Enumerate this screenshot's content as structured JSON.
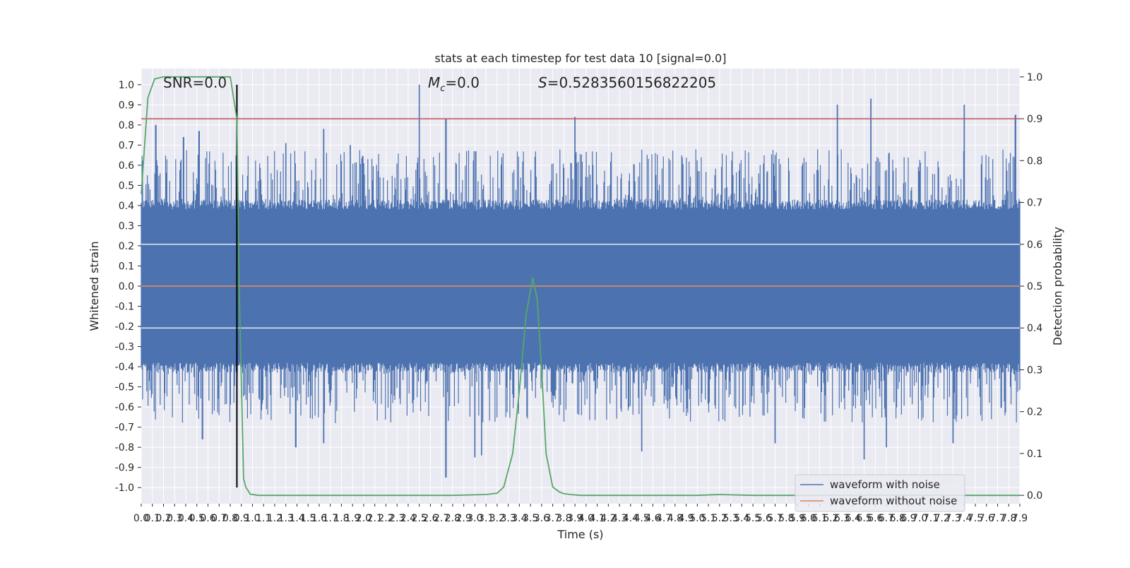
{
  "chart_data": {
    "type": "line",
    "title": "stats at each timestep for test data 10 [signal=0.0]",
    "xlabel": "Time (s)",
    "ylabel": "Whitened strain",
    "y2label": "Detection probability",
    "xlim": [
      0.0,
      7.9
    ],
    "ylim": [
      -1.08,
      1.08
    ],
    "y2lim": [
      -0.02,
      1.02
    ],
    "x_ticks": [
      0.0,
      0.1,
      0.2,
      0.3,
      0.4,
      0.5,
      0.6,
      0.7,
      0.8,
      0.9,
      1.0,
      1.1,
      1.2,
      1.3,
      1.4,
      1.5,
      1.6,
      1.7,
      1.8,
      1.9,
      2.0,
      2.1,
      2.2,
      2.3,
      2.4,
      2.5,
      2.6,
      2.7,
      2.8,
      2.9,
      3.0,
      3.1,
      3.2,
      3.3,
      3.4,
      3.5,
      3.6,
      3.7,
      3.8,
      3.9,
      4.0,
      4.1,
      4.2,
      4.3,
      4.4,
      4.5,
      4.6,
      4.7,
      4.8,
      4.9,
      5.0,
      5.1,
      5.2,
      5.3,
      5.4,
      5.5,
      5.6,
      5.7,
      5.8,
      5.9,
      6.0,
      6.1,
      6.2,
      6.3,
      6.4,
      6.5,
      6.6,
      6.7,
      6.8,
      6.9,
      7.0,
      7.1,
      7.2,
      7.3,
      7.4,
      7.5,
      7.6,
      7.7,
      7.8,
      7.9
    ],
    "y_ticks": [
      -1.0,
      -0.9,
      -0.8,
      -0.7,
      -0.6,
      -0.5,
      -0.4,
      -0.3,
      -0.2,
      -0.1,
      0.0,
      0.1,
      0.2,
      0.3,
      0.4,
      0.5,
      0.6,
      0.7,
      0.8,
      0.9,
      1.0
    ],
    "y2_ticks": [
      0.0,
      0.1,
      0.2,
      0.3,
      0.4,
      0.5,
      0.6,
      0.7,
      0.8,
      0.9,
      1.0
    ],
    "grid": true,
    "legend_position": "lower-right",
    "annotations": {
      "snr": "SNR=0.0",
      "mc_symbol": "M",
      "mc_sub": "c",
      "mc_value": "=0.0",
      "s_symbol": "S",
      "s_value": "=0.5283560156822205"
    },
    "threshold": {
      "y2": 0.9,
      "color": "#c44e52"
    },
    "marker_time": 0.86,
    "noise_envelope": {
      "band": 0.38,
      "max_peaks": [
        {
          "x": 0.13,
          "y": 0.8
        },
        {
          "x": 0.38,
          "y": 0.74
        },
        {
          "x": 0.52,
          "y": 0.77
        },
        {
          "x": 1.3,
          "y": 0.71
        },
        {
          "x": 1.64,
          "y": 0.78
        },
        {
          "x": 1.88,
          "y": 0.7
        },
        {
          "x": 2.5,
          "y": 1.0
        },
        {
          "x": 2.74,
          "y": 0.83
        },
        {
          "x": 3.9,
          "y": 0.84
        },
        {
          "x": 6.26,
          "y": 0.9
        },
        {
          "x": 6.56,
          "y": 0.93
        },
        {
          "x": 7.4,
          "y": 0.9
        },
        {
          "x": 7.86,
          "y": 0.85
        }
      ],
      "min_peaks": [
        {
          "x": 0.55,
          "y": -0.76
        },
        {
          "x": 1.39,
          "y": -0.8
        },
        {
          "x": 1.64,
          "y": -0.78
        },
        {
          "x": 2.74,
          "y": -0.95
        },
        {
          "x": 3.0,
          "y": -0.85
        },
        {
          "x": 3.06,
          "y": -0.84
        },
        {
          "x": 4.5,
          "y": -0.82
        },
        {
          "x": 5.7,
          "y": -0.78
        },
        {
          "x": 6.5,
          "y": -0.86
        },
        {
          "x": 6.7,
          "y": -0.8
        },
        {
          "x": 7.3,
          "y": -0.78
        }
      ]
    },
    "series": [
      {
        "name": "waveform with noise",
        "color": "#4c72b0"
      },
      {
        "name": "waveform without noise",
        "color": "#dd8452",
        "y": 0.0
      },
      {
        "color": "#55a868",
        "axis": "right",
        "x": [
          0.0,
          0.06,
          0.12,
          0.2,
          0.3,
          0.5,
          0.8,
          0.86,
          0.88,
          0.92,
          0.94,
          0.98,
          1.05,
          1.3,
          2.0,
          2.8,
          3.1,
          3.2,
          3.26,
          3.34,
          3.4,
          3.46,
          3.52,
          3.56,
          3.6,
          3.64,
          3.7,
          3.76,
          3.8,
          3.86,
          3.95,
          4.2,
          5.0,
          5.2,
          5.5,
          6.0,
          7.0,
          7.9
        ],
        "y": [
          0.72,
          0.95,
          0.995,
          1.0,
          1.0,
          1.0,
          1.0,
          0.9,
          0.5,
          0.04,
          0.02,
          0.003,
          0.0,
          0.0,
          0.0,
          0.0,
          0.002,
          0.005,
          0.02,
          0.1,
          0.25,
          0.43,
          0.52,
          0.47,
          0.3,
          0.1,
          0.02,
          0.008,
          0.004,
          0.002,
          0.0,
          0.0,
          0.0,
          0.002,
          0.0,
          0.0,
          0.0,
          0.0
        ]
      }
    ]
  }
}
